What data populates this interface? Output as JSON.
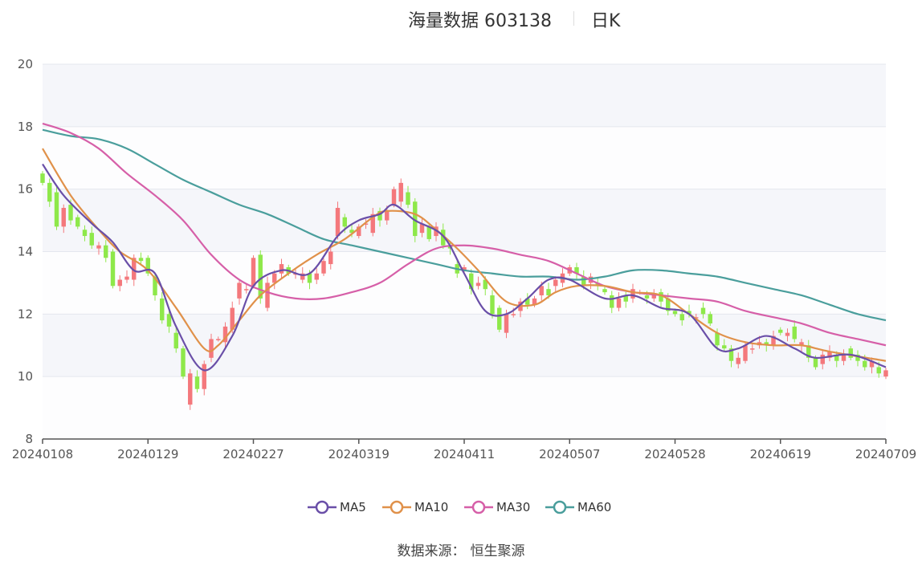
{
  "header": {
    "title": "海量数据 603138",
    "period": "日K"
  },
  "source": {
    "label": "数据来源：",
    "value": "恒生聚源"
  },
  "legend": [
    {
      "name": "MA5",
      "color": "#6a4fa8"
    },
    {
      "name": "MA10",
      "color": "#e0914a"
    },
    {
      "name": "MA30",
      "color": "#d65fa8"
    },
    {
      "name": "MA60",
      "color": "#4a9e9c"
    }
  ],
  "colors": {
    "up": "#f4787c",
    "down": "#8ee84a"
  },
  "chart_data": {
    "type": "candlestick",
    "ylim": [
      8,
      20
    ],
    "yticks": [
      8,
      10,
      12,
      14,
      16,
      18,
      20
    ],
    "xlabels": [
      "20240108",
      "20240129",
      "20240227",
      "20240319",
      "20240411",
      "20240507",
      "20240528",
      "20240619",
      "20240709"
    ],
    "n": 121,
    "grid": true,
    "legend_position": "bottom",
    "candles": [
      [
        16.5,
        16.2
      ],
      [
        16.2,
        15.6
      ],
      [
        15.9,
        14.8
      ],
      [
        14.8,
        15.4
      ],
      [
        15.5,
        15.0
      ],
      [
        15.1,
        14.8
      ],
      [
        14.7,
        14.5
      ],
      [
        14.6,
        14.2
      ],
      [
        14.1,
        14.2
      ],
      [
        14.2,
        13.8
      ],
      [
        14.0,
        12.9
      ],
      [
        12.9,
        13.1
      ],
      [
        13.1,
        13.2
      ],
      [
        13.1,
        13.8
      ],
      [
        13.8,
        13.7
      ],
      [
        13.8,
        13.3
      ],
      [
        13.2,
        12.6
      ],
      [
        12.5,
        11.8
      ],
      [
        12.0,
        11.6
      ],
      [
        11.4,
        10.9
      ],
      [
        10.9,
        10.0
      ],
      [
        9.1,
        10.1
      ],
      [
        10.0,
        9.6
      ],
      [
        9.6,
        10.4
      ],
      [
        10.6,
        11.2
      ],
      [
        11.2,
        11.2
      ],
      [
        11.1,
        11.6
      ],
      [
        11.5,
        12.2
      ],
      [
        12.5,
        13.0
      ],
      [
        12.8,
        12.8
      ],
      [
        12.9,
        13.8
      ],
      [
        13.9,
        12.5
      ],
      [
        12.2,
        13.0
      ],
      [
        13.0,
        13.3
      ],
      [
        13.3,
        13.6
      ],
      [
        13.5,
        13.3
      ],
      [
        13.3,
        13.3
      ],
      [
        13.1,
        13.3
      ],
      [
        13.3,
        13.0
      ],
      [
        13.1,
        13.3
      ],
      [
        13.3,
        13.7
      ],
      [
        13.6,
        14.0
      ],
      [
        14.5,
        15.4
      ],
      [
        15.1,
        14.8
      ],
      [
        14.7,
        14.6
      ],
      [
        14.5,
        14.8
      ],
      [
        14.9,
        14.9
      ],
      [
        14.6,
        15.2
      ],
      [
        15.3,
        15.0
      ],
      [
        15.0,
        15.3
      ],
      [
        15.5,
        16.0
      ],
      [
        15.6,
        16.2
      ],
      [
        15.9,
        15.5
      ],
      [
        15.6,
        14.5
      ],
      [
        14.6,
        14.9
      ],
      [
        14.8,
        14.4
      ],
      [
        14.5,
        14.8
      ],
      [
        14.7,
        14.2
      ],
      [
        14.2,
        14.1
      ],
      [
        13.6,
        13.3
      ],
      [
        13.4,
        13.5
      ],
      [
        13.3,
        12.8
      ],
      [
        12.9,
        13.0
      ],
      [
        13.1,
        12.8
      ],
      [
        12.6,
        12.0
      ],
      [
        12.2,
        11.5
      ],
      [
        11.4,
        12.0
      ],
      [
        12.0,
        12.0
      ],
      [
        12.1,
        12.4
      ],
      [
        12.5,
        12.3
      ],
      [
        12.3,
        12.5
      ],
      [
        12.6,
        12.9
      ],
      [
        12.8,
        12.6
      ],
      [
        12.9,
        13.1
      ],
      [
        13.0,
        13.3
      ],
      [
        13.3,
        13.5
      ],
      [
        13.5,
        13.3
      ],
      [
        13.2,
        12.9
      ],
      [
        13.0,
        13.2
      ],
      [
        13.0,
        12.9
      ],
      [
        12.8,
        12.7
      ],
      [
        12.6,
        12.2
      ],
      [
        12.2,
        12.5
      ],
      [
        12.6,
        12.4
      ],
      [
        12.5,
        12.8
      ],
      [
        12.7,
        12.7
      ],
      [
        12.6,
        12.5
      ],
      [
        12.5,
        12.6
      ],
      [
        12.7,
        12.4
      ],
      [
        12.5,
        12.1
      ],
      [
        12.1,
        12.0
      ],
      [
        12.0,
        11.8
      ],
      [
        12.1,
        12.0
      ],
      [
        11.9,
        11.9
      ],
      [
        12.2,
        12.0
      ],
      [
        12.0,
        11.7
      ],
      [
        11.4,
        11.0
      ],
      [
        11.0,
        10.9
      ],
      [
        10.9,
        10.5
      ],
      [
        10.4,
        10.6
      ],
      [
        10.5,
        11.0
      ],
      [
        10.9,
        10.9
      ],
      [
        11.0,
        11.1
      ],
      [
        11.1,
        11.0
      ],
      [
        11.0,
        11.3
      ],
      [
        11.5,
        11.4
      ],
      [
        11.3,
        11.4
      ],
      [
        11.6,
        11.2
      ],
      [
        11.0,
        11.1
      ],
      [
        11.0,
        10.6
      ],
      [
        10.6,
        10.3
      ],
      [
        10.4,
        10.7
      ],
      [
        10.6,
        10.8
      ],
      [
        10.7,
        10.5
      ],
      [
        10.5,
        10.7
      ],
      [
        10.9,
        10.6
      ],
      [
        10.7,
        10.5
      ],
      [
        10.5,
        10.3
      ],
      [
        10.3,
        10.5
      ],
      [
        10.3,
        10.1
      ],
      [
        10.0,
        10.2
      ]
    ],
    "ma": {
      "MA5": [
        [
          0,
          16.8
        ],
        [
          3,
          15.8
        ],
        [
          7,
          14.9
        ],
        [
          10,
          14.3
        ],
        [
          13,
          13.4
        ],
        [
          16,
          13.3
        ],
        [
          19,
          11.6
        ],
        [
          23,
          10.2
        ],
        [
          27,
          11.3
        ],
        [
          30,
          12.9
        ],
        [
          34,
          13.4
        ],
        [
          38,
          13.3
        ],
        [
          42,
          14.5
        ],
        [
          45,
          15.0
        ],
        [
          48,
          15.2
        ],
        [
          50,
          15.5
        ],
        [
          53,
          15.0
        ],
        [
          57,
          14.5
        ],
        [
          60,
          13.3
        ],
        [
          63,
          12.1
        ],
        [
          66,
          12.0
        ],
        [
          69,
          12.5
        ],
        [
          72,
          13.1
        ],
        [
          75,
          13.1
        ],
        [
          80,
          12.5
        ],
        [
          84,
          12.6
        ],
        [
          88,
          12.2
        ],
        [
          92,
          12.0
        ],
        [
          96,
          10.9
        ],
        [
          99,
          10.9
        ],
        [
          103,
          11.3
        ],
        [
          107,
          10.9
        ],
        [
          110,
          10.6
        ],
        [
          115,
          10.7
        ],
        [
          120,
          10.3
        ]
      ],
      "MA10": [
        [
          0,
          17.3
        ],
        [
          4,
          15.8
        ],
        [
          8,
          14.7
        ],
        [
          11,
          14.0
        ],
        [
          15,
          13.4
        ],
        [
          19,
          12.2
        ],
        [
          23,
          10.9
        ],
        [
          25,
          11.0
        ],
        [
          28,
          11.8
        ],
        [
          31,
          12.6
        ],
        [
          35,
          13.3
        ],
        [
          39,
          13.9
        ],
        [
          43,
          14.4
        ],
        [
          47,
          15.1
        ],
        [
          49,
          15.3
        ],
        [
          53,
          15.2
        ],
        [
          56,
          14.7
        ],
        [
          59,
          14.1
        ],
        [
          62,
          13.4
        ],
        [
          66,
          12.4
        ],
        [
          70,
          12.3
        ],
        [
          73,
          12.7
        ],
        [
          76,
          12.9
        ],
        [
          80,
          12.9
        ],
        [
          84,
          12.7
        ],
        [
          88,
          12.6
        ],
        [
          92,
          12.0
        ],
        [
          96,
          11.4
        ],
        [
          100,
          11.1
        ],
        [
          104,
          11.0
        ],
        [
          108,
          11.0
        ],
        [
          112,
          10.8
        ],
        [
          120,
          10.5
        ]
      ],
      "MA30": [
        [
          0,
          18.1
        ],
        [
          4,
          17.8
        ],
        [
          8,
          17.3
        ],
        [
          12,
          16.5
        ],
        [
          16,
          15.8
        ],
        [
          20,
          15.0
        ],
        [
          24,
          13.9
        ],
        [
          28,
          13.1
        ],
        [
          32,
          12.7
        ],
        [
          36,
          12.5
        ],
        [
          40,
          12.5
        ],
        [
          44,
          12.7
        ],
        [
          48,
          13.0
        ],
        [
          52,
          13.6
        ],
        [
          56,
          14.1
        ],
        [
          60,
          14.2
        ],
        [
          64,
          14.1
        ],
        [
          68,
          13.9
        ],
        [
          72,
          13.7
        ],
        [
          76,
          13.3
        ],
        [
          80,
          12.9
        ],
        [
          84,
          12.7
        ],
        [
          88,
          12.6
        ],
        [
          92,
          12.5
        ],
        [
          96,
          12.4
        ],
        [
          100,
          12.1
        ],
        [
          104,
          11.9
        ],
        [
          108,
          11.7
        ],
        [
          112,
          11.4
        ],
        [
          116,
          11.2
        ],
        [
          120,
          11.0
        ]
      ],
      "MA60": [
        [
          0,
          17.9
        ],
        [
          4,
          17.7
        ],
        [
          8,
          17.6
        ],
        [
          12,
          17.3
        ],
        [
          16,
          16.8
        ],
        [
          20,
          16.3
        ],
        [
          24,
          15.9
        ],
        [
          28,
          15.5
        ],
        [
          32,
          15.2
        ],
        [
          36,
          14.8
        ],
        [
          40,
          14.4
        ],
        [
          44,
          14.2
        ],
        [
          48,
          14.0
        ],
        [
          52,
          13.8
        ],
        [
          56,
          13.6
        ],
        [
          60,
          13.4
        ],
        [
          64,
          13.3
        ],
        [
          68,
          13.2
        ],
        [
          72,
          13.2
        ],
        [
          76,
          13.1
        ],
        [
          80,
          13.2
        ],
        [
          84,
          13.4
        ],
        [
          88,
          13.4
        ],
        [
          92,
          13.3
        ],
        [
          96,
          13.2
        ],
        [
          100,
          13.0
        ],
        [
          104,
          12.8
        ],
        [
          108,
          12.6
        ],
        [
          112,
          12.3
        ],
        [
          116,
          12.0
        ],
        [
          120,
          11.8
        ]
      ]
    }
  }
}
